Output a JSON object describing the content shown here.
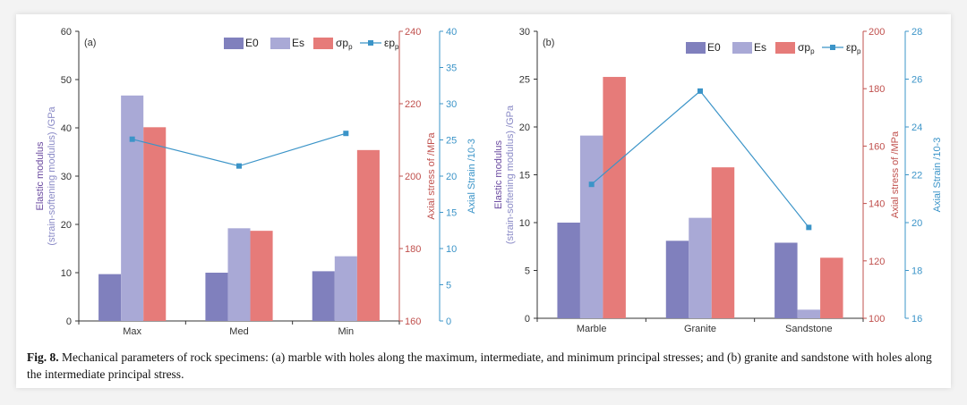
{
  "colors": {
    "e0": "#8080bd",
    "es": "#a9a9d6",
    "sp": "#e67b79",
    "ep": "#3b94c8",
    "left_axis": "#6a4aa0",
    "stress_axis": "#c0504d",
    "strain_axis": "#3b94c8"
  },
  "caption": {
    "label": "Fig. 8.",
    "text": " Mechanical parameters of rock specimens: (a) marble with holes along the maximum, intermediate, and minimum principal stresses; and (b) granite and sandstone with holes along the intermediate principal stress."
  },
  "chart_data": [
    {
      "panel": "(a)",
      "type": "bar",
      "categories": [
        "Max",
        "Med",
        "Min"
      ],
      "ylabel_line1": "Elastic modulus",
      "ylabel_line2": "(strain-softening modulus) /GPa",
      "ylim": [
        0,
        60
      ],
      "yticks": [
        "0",
        "10",
        "20",
        "30",
        "40",
        "50",
        "60"
      ],
      "ylabel2": "Axial stress of /MPa",
      "ylim2": [
        160,
        240
      ],
      "yticks2": [
        "160",
        "180",
        "200",
        "220",
        "240"
      ],
      "ylabel3": "Axial Strain /10-3",
      "ylim3": [
        0,
        40
      ],
      "yticks3": [
        "0",
        "5",
        "10",
        "15",
        "20",
        "25",
        "30",
        "35",
        "40"
      ],
      "legend": [
        "E0",
        "Es",
        "σp",
        "εp"
      ],
      "series": [
        {
          "name": "E0",
          "axis": "left",
          "values": [
            9.7,
            10.0,
            10.3
          ]
        },
        {
          "name": "Es",
          "axis": "left",
          "values": [
            46.7,
            19.2,
            13.4
          ]
        },
        {
          "name": "σp",
          "axis": "stress",
          "values": [
            213.5,
            184.9,
            207.2
          ]
        },
        {
          "name": "εp",
          "axis": "strain",
          "type": "line",
          "values": [
            25.1,
            21.4,
            25.9
          ]
        }
      ]
    },
    {
      "panel": "(b)",
      "type": "bar",
      "categories": [
        "Marble",
        "Granite",
        "Sandstone"
      ],
      "ylabel_line1": "Elastic modulus",
      "ylabel_line2": "(strain-softening modulus) /GPa",
      "ylim": [
        0,
        30
      ],
      "yticks": [
        "0",
        "5",
        "10",
        "15",
        "20",
        "25",
        "30"
      ],
      "ylabel2": "Axial stress of /MPa",
      "ylim2": [
        100,
        200
      ],
      "yticks2": [
        "100",
        "120",
        "140",
        "160",
        "180",
        "200"
      ],
      "ylabel3": "Axial Strain /10-3",
      "ylim3": [
        16,
        28
      ],
      "yticks3": [
        "16",
        "18",
        "20",
        "22",
        "24",
        "26",
        "28"
      ],
      "legend": [
        "E0",
        "Es",
        "σp",
        "εp"
      ],
      "series": [
        {
          "name": "E0",
          "axis": "left",
          "values": [
            10.0,
            8.1,
            7.9
          ]
        },
        {
          "name": "Es",
          "axis": "left",
          "values": [
            19.1,
            10.5,
            0.9
          ]
        },
        {
          "name": "σp",
          "axis": "stress",
          "values": [
            184.1,
            152.6,
            121.1
          ]
        },
        {
          "name": "εp",
          "axis": "strain",
          "type": "line",
          "values": [
            21.6,
            25.5,
            19.8
          ]
        }
      ]
    }
  ]
}
